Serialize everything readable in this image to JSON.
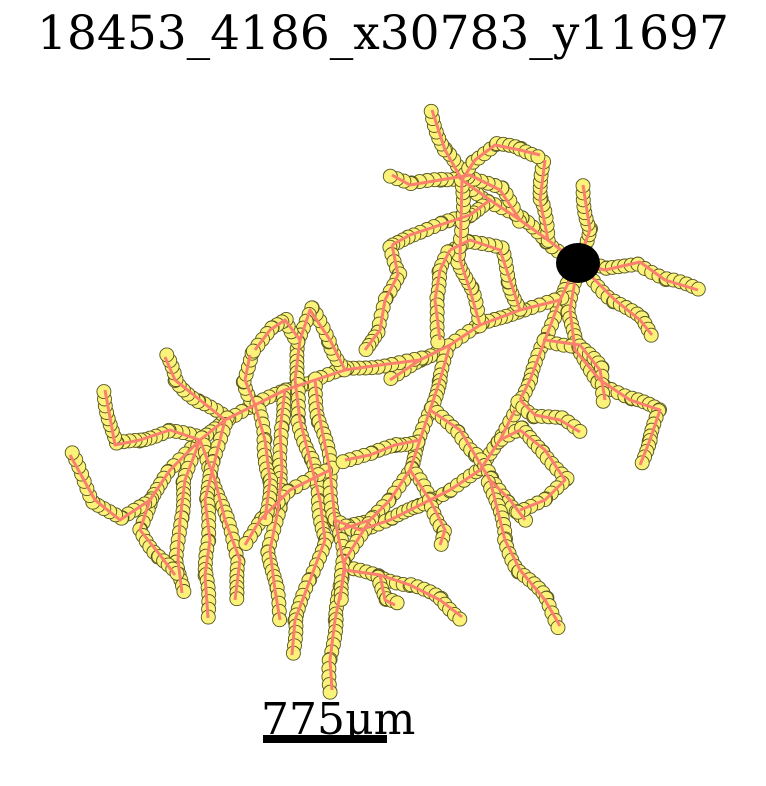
{
  "figure": {
    "title": "18453_4186_x30783_y11697",
    "scale_bar_label": "775μm",
    "colors": {
      "branch_stroke": "#fa7f6f",
      "node_fill": "#fbf27a",
      "node_stroke": "#55551f",
      "soma_fill": "#000000",
      "scale_bar": "#000000",
      "background": "#ffffff"
    }
  }
}
